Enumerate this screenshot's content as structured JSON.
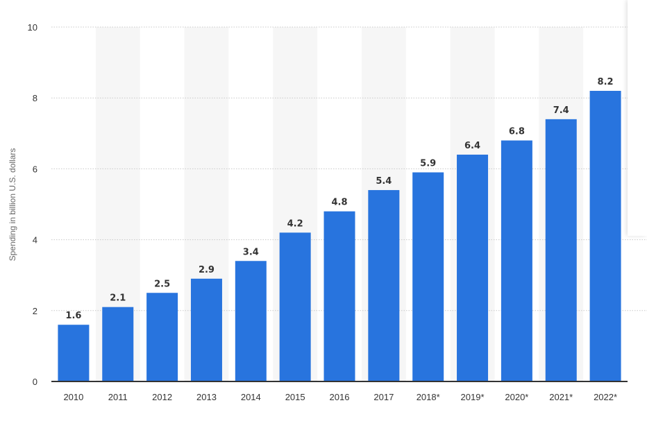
{
  "chart_data": {
    "type": "bar",
    "title": "",
    "xlabel": "",
    "ylabel": "Spending in billion U.S. dollars",
    "categories": [
      "2010",
      "2011",
      "2012",
      "2013",
      "2014",
      "2015",
      "2016",
      "2017",
      "2018*",
      "2019*",
      "2020*",
      "2021*",
      "2022*"
    ],
    "values": [
      1.6,
      2.1,
      2.5,
      2.9,
      3.4,
      4.2,
      4.8,
      5.4,
      5.9,
      6.4,
      6.8,
      7.4,
      8.2
    ],
    "value_labels": [
      "1.6",
      "2.1",
      "2.5",
      "2.9",
      "3.4",
      "4.2",
      "4.8",
      "5.4",
      "5.9",
      "6.4",
      "6.8",
      "7.4",
      "8.2"
    ],
    "ylim": [
      0,
      10
    ],
    "yticks": [
      0,
      2,
      4,
      6,
      8,
      10
    ],
    "ytick_labels": [
      "0",
      "2",
      "4",
      "6",
      "8",
      "10"
    ],
    "grid": true,
    "legend": "none",
    "colors": {
      "bar": "#2874de",
      "stripe": "#f6f6f6",
      "grid": "#c8c8c8",
      "axis": "#333333"
    }
  }
}
